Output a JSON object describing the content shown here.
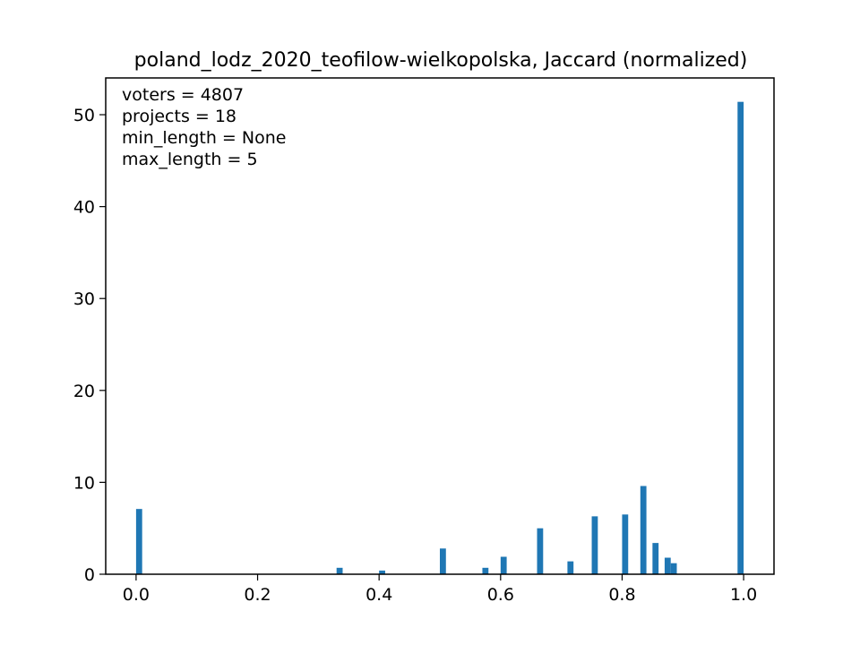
{
  "chart_data": {
    "type": "bar",
    "title": "poland_lodz_2020_teofilow-wielkopolska, Jaccard (normalized)",
    "xlabel": "",
    "ylabel": "",
    "xlim": [
      -0.05,
      1.05
    ],
    "ylim": [
      0,
      54
    ],
    "xticks": [
      0.0,
      0.2,
      0.4,
      0.6,
      0.8,
      1.0
    ],
    "xtick_labels": [
      "0.0",
      "0.2",
      "0.4",
      "0.6",
      "0.8",
      "1.0"
    ],
    "yticks": [
      0,
      10,
      20,
      30,
      40,
      50
    ],
    "ytick_labels": [
      "0",
      "10",
      "20",
      "30",
      "40",
      "50"
    ],
    "bar_width": 0.01,
    "bar_color": "#1f77b4",
    "grid": false,
    "annotations": [
      "voters = 4807",
      "projects = 18",
      "min_length = None",
      "max_length = 5"
    ],
    "bars": [
      {
        "x": 0.005,
        "y": 7.1
      },
      {
        "x": 0.335,
        "y": 0.7
      },
      {
        "x": 0.405,
        "y": 0.4
      },
      {
        "x": 0.505,
        "y": 2.8
      },
      {
        "x": 0.575,
        "y": 0.7
      },
      {
        "x": 0.605,
        "y": 1.9
      },
      {
        "x": 0.665,
        "y": 5.0
      },
      {
        "x": 0.715,
        "y": 1.4
      },
      {
        "x": 0.755,
        "y": 6.3
      },
      {
        "x": 0.805,
        "y": 6.5
      },
      {
        "x": 0.835,
        "y": 9.6
      },
      {
        "x": 0.855,
        "y": 3.4
      },
      {
        "x": 0.875,
        "y": 1.8
      },
      {
        "x": 0.885,
        "y": 1.2
      },
      {
        "x": 0.995,
        "y": 51.4
      }
    ]
  }
}
